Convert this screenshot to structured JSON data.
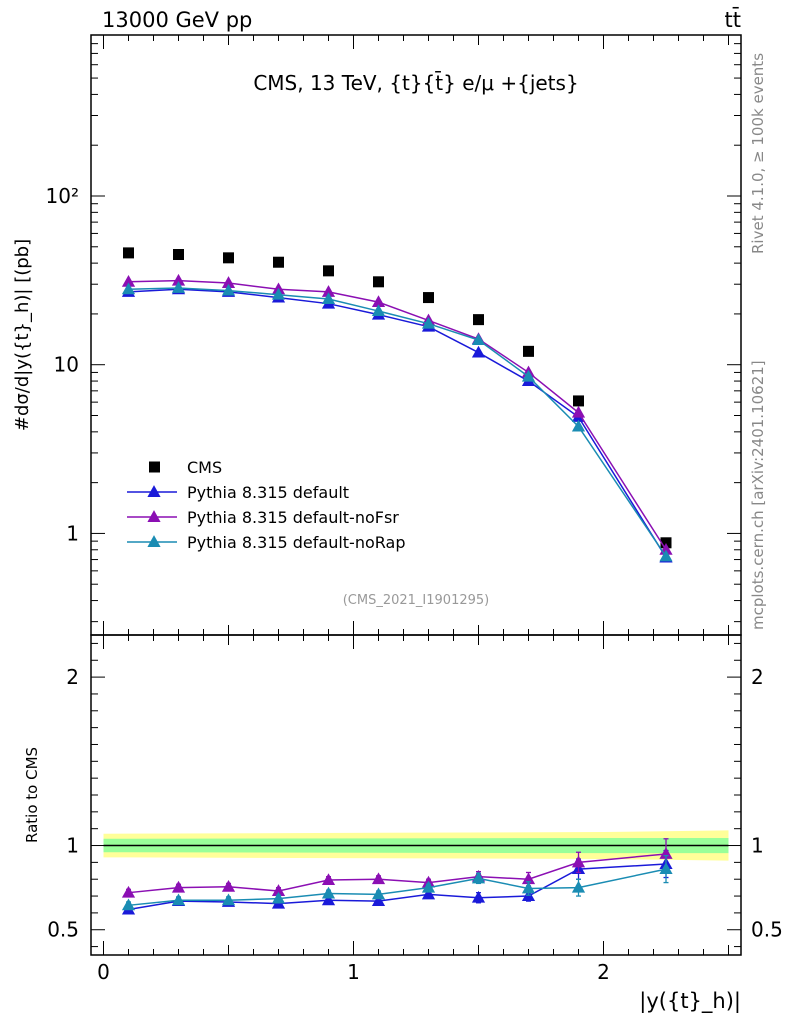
{
  "header": {
    "left": "13000 GeV pp",
    "right": "tt̄"
  },
  "side_labels": {
    "rivet": "Rivet 4.1.0, ≥ 100k events",
    "mcplots": "mcplots.cern.ch [arXiv:2401.10621]"
  },
  "chart_data": [
    {
      "type": "scatter",
      "panel": "main",
      "title": "CMS, 13 TeV, {t}{t̄} e/μ +{jets}",
      "analysis_tag": "(CMS_2021_I1901295)",
      "ylabel": "#dσ/d|y({t}_h)| [(pb]",
      "yscale": "log",
      "ylim": [
        0.25,
        900
      ],
      "xlim": [
        -0.05,
        2.55
      ],
      "yticks": [
        {
          "value": 1,
          "label": "1"
        },
        {
          "value": 10,
          "label": "10"
        },
        {
          "value": 100,
          "label": "10²"
        }
      ],
      "x": [
        0.1,
        0.3,
        0.5,
        0.7,
        0.9,
        1.1,
        1.3,
        1.5,
        1.7,
        1.9,
        2.25
      ],
      "series": [
        {
          "name": "CMS",
          "color": "#000000",
          "marker": "square",
          "line": false,
          "values": [
            46,
            45,
            43,
            40.5,
            36,
            31,
            25,
            18.5,
            12,
            6.1,
            0.88
          ]
        },
        {
          "name": "Pythia 8.315 default",
          "color": "#1a1ad9",
          "marker": "triangle",
          "line": true,
          "values": [
            27,
            28,
            27,
            25,
            23,
            19.8,
            16.8,
            11.8,
            8.0,
            4.9,
            0.72
          ]
        },
        {
          "name": "Pythia 8.315 default-noFsr",
          "color": "#8b0fb3",
          "marker": "triangle",
          "line": true,
          "values": [
            31,
            31.5,
            30.5,
            28,
            27,
            23.5,
            18.3,
            14.2,
            9.0,
            5.2,
            0.8
          ]
        },
        {
          "name": "Pythia 8.315 default-noRap",
          "color": "#1a8cb3",
          "marker": "triangle",
          "line": true,
          "values": [
            28,
            28.5,
            27.5,
            26,
            24.5,
            20.8,
            17.5,
            14.0,
            8.5,
            4.3,
            0.73
          ]
        }
      ]
    },
    {
      "type": "line",
      "panel": "ratio",
      "ylabel": "Ratio to CMS",
      "xlabel": "|y({t}_h)|",
      "ylim": [
        0.35,
        2.25
      ],
      "xlim": [
        -0.05,
        2.55
      ],
      "yticks": [
        {
          "value": 0.5,
          "label": "0.5"
        },
        {
          "value": 1,
          "label": "1"
        },
        {
          "value": 2,
          "label": "2"
        }
      ],
      "xticks": [
        {
          "value": 0,
          "label": "0"
        },
        {
          "value": 1,
          "label": "1"
        },
        {
          "value": 2,
          "label": "2"
        }
      ],
      "band_edges": [
        0,
        2.5
      ],
      "band_yellow": {
        "color": "#ffff99",
        "x": [
          0,
          2.0,
          2.5
        ],
        "low": [
          0.93,
          0.92,
          0.91
        ],
        "high": [
          1.07,
          1.08,
          1.09
        ]
      },
      "band_green": {
        "color": "#99ff99",
        "x": [
          0,
          2.0,
          2.5
        ],
        "low": [
          0.96,
          0.955,
          0.955
        ],
        "high": [
          1.04,
          1.045,
          1.045
        ]
      },
      "x": [
        0.1,
        0.3,
        0.5,
        0.7,
        0.9,
        1.1,
        1.3,
        1.5,
        1.7,
        1.9,
        2.25
      ],
      "series": [
        {
          "name": "Pythia 8.315 default",
          "color": "#1a1ad9",
          "values": [
            0.62,
            0.67,
            0.665,
            0.655,
            0.675,
            0.67,
            0.71,
            0.69,
            0.7,
            0.86,
            0.89
          ],
          "errors": [
            0.02,
            0.02,
            0.02,
            0.02,
            0.02,
            0.02,
            0.02,
            0.03,
            0.03,
            0.06,
            0.08
          ]
        },
        {
          "name": "Pythia 8.315 default-noFsr",
          "color": "#8b0fb3",
          "values": [
            0.72,
            0.75,
            0.755,
            0.73,
            0.795,
            0.8,
            0.78,
            0.815,
            0.8,
            0.9,
            0.95
          ],
          "errors": [
            0.02,
            0.02,
            0.02,
            0.02,
            0.02,
            0.02,
            0.02,
            0.03,
            0.04,
            0.06,
            0.09
          ]
        },
        {
          "name": "Pythia 8.315 default-noRap",
          "color": "#1a8cb3",
          "values": [
            0.645,
            0.675,
            0.675,
            0.685,
            0.715,
            0.71,
            0.75,
            0.805,
            0.745,
            0.75,
            0.86
          ],
          "errors": [
            0.02,
            0.02,
            0.02,
            0.02,
            0.02,
            0.02,
            0.02,
            0.03,
            0.04,
            0.05,
            0.08
          ]
        }
      ]
    }
  ]
}
